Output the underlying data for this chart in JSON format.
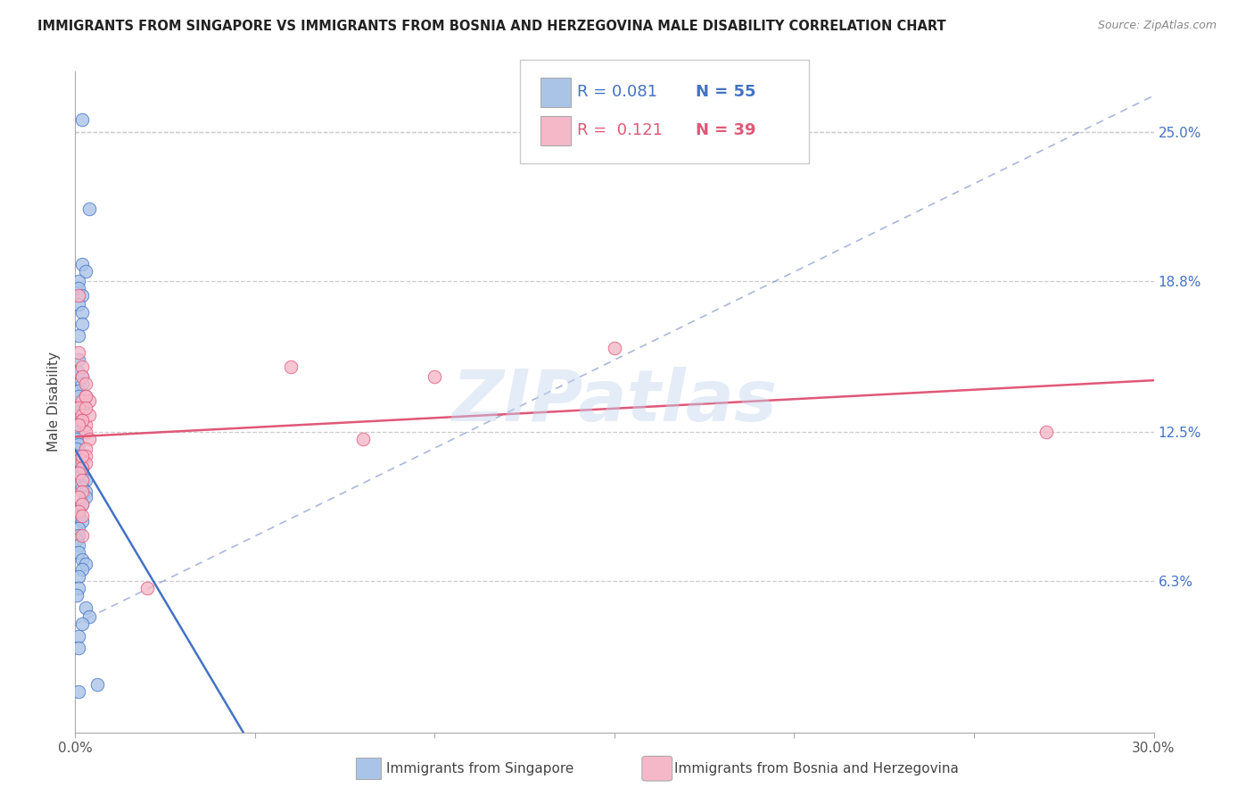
{
  "title": "IMMIGRANTS FROM SINGAPORE VS IMMIGRANTS FROM BOSNIA AND HERZEGOVINA MALE DISABILITY CORRELATION CHART",
  "source": "Source: ZipAtlas.com",
  "ylabel": "Male Disability",
  "xlim": [
    0.0,
    0.3
  ],
  "ylim": [
    0.0,
    0.275
  ],
  "ytick_labels": [
    "6.3%",
    "12.5%",
    "18.8%",
    "25.0%"
  ],
  "ytick_values": [
    0.063,
    0.125,
    0.188,
    0.25
  ],
  "xtick_labels": [
    "0.0%",
    "30.0%"
  ],
  "xtick_values": [
    0.0,
    0.3
  ],
  "xtick_minor_values": [
    0.05,
    0.1,
    0.15,
    0.2,
    0.25
  ],
  "legend_R1": "0.081",
  "legend_N1": "55",
  "legend_R2": "0.121",
  "legend_N2": "39",
  "watermark": "ZIPatlas",
  "series1_color": "#aac4e8",
  "series2_color": "#f5b8c8",
  "line1_color": "#4472c4",
  "line2_color": "#e05878",
  "dashed_line_color": "#aaaacc",
  "background_color": "#ffffff",
  "label1": "Immigrants from Singapore",
  "label2": "Immigrants from Bosnia and Herzegovina",
  "sg_x": [
    0.002,
    0.004,
    0.002,
    0.003,
    0.001,
    0.001,
    0.002,
    0.001,
    0.002,
    0.002,
    0.001,
    0.001,
    0.001,
    0.002,
    0.002,
    0.001,
    0.001,
    0.002,
    0.002,
    0.001,
    0.001,
    0.0005,
    0.001,
    0.0005,
    0.001,
    0.001,
    0.002,
    0.002,
    0.002,
    0.003,
    0.002,
    0.003,
    0.003,
    0.002,
    0.001,
    0.001,
    0.002,
    0.001,
    0.001,
    0.0005,
    0.001,
    0.001,
    0.002,
    0.003,
    0.002,
    0.001,
    0.001,
    0.0005,
    0.003,
    0.004,
    0.002,
    0.001,
    0.001,
    0.006,
    0.001
  ],
  "sg_y": [
    0.255,
    0.218,
    0.195,
    0.192,
    0.188,
    0.185,
    0.182,
    0.178,
    0.175,
    0.17,
    0.165,
    0.155,
    0.15,
    0.148,
    0.145,
    0.142,
    0.14,
    0.135,
    0.13,
    0.128,
    0.125,
    0.122,
    0.12,
    0.118,
    0.115,
    0.113,
    0.11,
    0.108,
    0.105,
    0.105,
    0.102,
    0.1,
    0.098,
    0.095,
    0.092,
    0.09,
    0.088,
    0.085,
    0.082,
    0.08,
    0.078,
    0.075,
    0.072,
    0.07,
    0.068,
    0.065,
    0.06,
    0.057,
    0.052,
    0.048,
    0.045,
    0.04,
    0.035,
    0.02,
    0.017
  ],
  "ba_x": [
    0.001,
    0.001,
    0.002,
    0.002,
    0.003,
    0.003,
    0.002,
    0.001,
    0.002,
    0.002,
    0.003,
    0.003,
    0.004,
    0.003,
    0.003,
    0.002,
    0.003,
    0.002,
    0.001,
    0.002,
    0.002,
    0.001,
    0.002,
    0.001,
    0.002,
    0.004,
    0.004,
    0.003,
    0.002,
    0.002,
    0.003,
    0.001,
    0.002,
    0.06,
    0.08,
    0.1,
    0.15,
    0.27,
    0.02
  ],
  "ba_y": [
    0.182,
    0.158,
    0.152,
    0.148,
    0.145,
    0.14,
    0.138,
    0.135,
    0.132,
    0.13,
    0.128,
    0.125,
    0.122,
    0.118,
    0.115,
    0.113,
    0.112,
    0.11,
    0.108,
    0.105,
    0.1,
    0.098,
    0.095,
    0.092,
    0.09,
    0.132,
    0.138,
    0.14,
    0.082,
    0.13,
    0.135,
    0.128,
    0.115,
    0.152,
    0.122,
    0.148,
    0.16,
    0.125,
    0.06
  ]
}
